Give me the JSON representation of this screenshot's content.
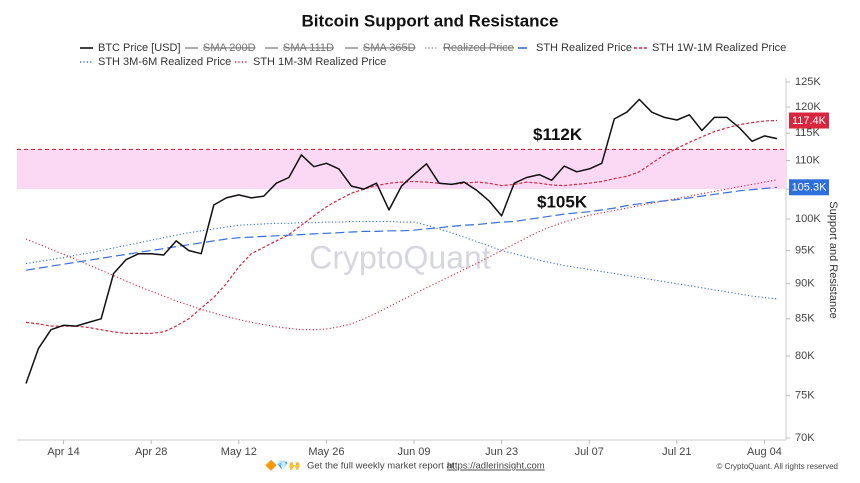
{
  "chart_data": {
    "type": "line",
    "title": "Bitcoin Support and Resistance",
    "y_axis_label": "Support and Resistance",
    "watermark": "CryptoQuant",
    "log_scale": true,
    "grid": false,
    "categories": [
      null,
      null,
      null,
      "Apr 14",
      null,
      null,
      null,
      null,
      null,
      null,
      "Apr 28",
      null,
      null,
      null,
      null,
      null,
      null,
      "May 12",
      null,
      null,
      null,
      null,
      null,
      null,
      "May 26",
      null,
      null,
      null,
      null,
      null,
      null,
      "Jun 09",
      null,
      null,
      null,
      null,
      null,
      null,
      "Jun 23",
      null,
      null,
      null,
      null,
      null,
      null,
      "Jul 07",
      null,
      null,
      null,
      null,
      null,
      null,
      "Jul 21",
      null,
      null,
      null,
      null,
      null,
      null,
      "Aug 04",
      null
    ],
    "ylim": [
      70000,
      125000
    ],
    "yticks": [
      {
        "value": 70000,
        "label": "70K"
      },
      {
        "value": 75000,
        "label": "75K"
      },
      {
        "value": 80000,
        "label": "80K"
      },
      {
        "value": 85000,
        "label": "85K"
      },
      {
        "value": 90000,
        "label": "90K"
      },
      {
        "value": 95000,
        "label": "95K"
      },
      {
        "value": 100000,
        "label": "100K"
      },
      {
        "value": 105000,
        "label": "105K"
      },
      {
        "value": 110000,
        "label": "110K"
      },
      {
        "value": 115000,
        "label": "115K"
      },
      {
        "value": 120000,
        "label": "120K"
      },
      {
        "value": 125000,
        "label": "125K"
      }
    ],
    "series": [
      {
        "name": "BTC Price [USD]",
        "color": "#111111",
        "line_style": "solid",
        "visible": true,
        "values": [
          76500,
          81000,
          83500,
          84100,
          84000,
          84500,
          85000,
          91500,
          93600,
          94500,
          94500,
          94300,
          96500,
          95000,
          94500,
          102300,
          103500,
          104000,
          103500,
          103800,
          106000,
          107000,
          111000,
          108900,
          109500,
          108500,
          105500,
          105000,
          106000,
          101500,
          105500,
          107500,
          109400,
          106000,
          105800,
          106200,
          104800,
          103000,
          100500,
          106000,
          107000,
          107500,
          106500,
          109000,
          108000,
          108500,
          109500,
          117700,
          119000,
          121500,
          119000,
          118000,
          117500,
          118500,
          115500,
          118000,
          118000,
          116000,
          113500,
          114500,
          114000
        ]
      },
      {
        "name": "SMA 200D",
        "color": "#888888",
        "line_style": "solid",
        "visible": false
      },
      {
        "name": "SMA 111D",
        "color": "#888888",
        "line_style": "solid",
        "visible": false
      },
      {
        "name": "SMA 365D",
        "color": "#888888",
        "line_style": "solid",
        "visible": false
      },
      {
        "name": "Realized Price",
        "color": "#888888",
        "line_style": "dotted",
        "visible": false
      },
      {
        "name": "STH Realized Price",
        "color": "#3a6fd8",
        "line_style": "dashed",
        "visible": true,
        "values": [
          92000,
          92300,
          92600,
          92900,
          93200,
          93500,
          93800,
          94100,
          94400,
          94700,
          95000,
          95300,
          95600,
          95900,
          96200,
          96500,
          96800,
          97000,
          97100,
          97200,
          97300,
          97400,
          97500,
          97600,
          97700,
          97800,
          97900,
          98000,
          98000,
          98100,
          98100,
          98200,
          98400,
          98600,
          98800,
          99000,
          99100,
          99300,
          99500,
          99600,
          99900,
          100200,
          100500,
          100800,
          101000,
          101200,
          101500,
          101800,
          102200,
          102500,
          102800,
          103000,
          103200,
          103500,
          103800,
          104100,
          104400,
          104700,
          104900,
          105100,
          105300
        ]
      },
      {
        "name": "STH 1W-1M Realized Price",
        "color": "#d7263d",
        "line_style": "dashed-fine",
        "visible": true,
        "values": [
          84500,
          84300,
          84000,
          84000,
          84000,
          83800,
          83500,
          83200,
          83000,
          83000,
          83000,
          83200,
          84000,
          85000,
          86500,
          88000,
          90000,
          92500,
          94500,
          95500,
          96500,
          97500,
          99000,
          100500,
          102000,
          103200,
          104300,
          105000,
          105600,
          106000,
          106200,
          106300,
          106200,
          106000,
          105800,
          106000,
          106200,
          106000,
          105600,
          105800,
          106200,
          106000,
          105700,
          105600,
          105800,
          106000,
          106300,
          106800,
          107200,
          108000,
          109500,
          111000,
          112200,
          113300,
          114300,
          115300,
          116000,
          116600,
          117000,
          117300,
          117400
        ]
      },
      {
        "name": "STH 3M-6M Realized Price",
        "color": "#3a6fd8",
        "line_style": "dotted",
        "visible": true,
        "values": [
          93000,
          93300,
          93600,
          93900,
          94300,
          94600,
          95000,
          95400,
          95800,
          96200,
          96600,
          97000,
          97400,
          97800,
          98100,
          98400,
          98700,
          99000,
          99100,
          99200,
          99300,
          99300,
          99400,
          99400,
          99500,
          99500,
          99600,
          99600,
          99600,
          99600,
          99500,
          99500,
          99000,
          98400,
          97800,
          97100,
          96400,
          95700,
          95000,
          94500,
          94000,
          93500,
          93100,
          92700,
          92400,
          92100,
          91800,
          91500,
          91200,
          90900,
          90600,
          90300,
          90000,
          89700,
          89400,
          89100,
          88800,
          88500,
          88200,
          88000,
          87800
        ]
      },
      {
        "name": "STH 1M-3M Realized Price",
        "color": "#d7263d",
        "line_style": "dotted",
        "visible": true,
        "values": [
          96800,
          96000,
          95200,
          94400,
          93600,
          92800,
          92000,
          91200,
          90400,
          89600,
          88900,
          88200,
          87500,
          86900,
          86300,
          85800,
          85300,
          84900,
          84500,
          84200,
          83900,
          83700,
          83500,
          83500,
          83600,
          83900,
          84300,
          85000,
          85800,
          86700,
          87600,
          88500,
          89400,
          90300,
          91200,
          92100,
          93000,
          94000,
          95000,
          96000,
          97000,
          98000,
          98800,
          99500,
          100100,
          100600,
          101000,
          101400,
          101800,
          102200,
          102600,
          103000,
          103400,
          103800,
          104200,
          104600,
          105000,
          105400,
          105800,
          106200,
          106600
        ]
      }
    ],
    "zone": {
      "low": 105000,
      "high": 112000,
      "color": "#fbd9f5",
      "line_color": "#d7263d"
    },
    "annotations": [
      {
        "text": "$112K",
        "value": 112000
      },
      {
        "text": "$105K",
        "value": 105000
      }
    ],
    "end_labels": [
      {
        "value": 117400,
        "label": "117.4K",
        "color": "#d7263d"
      },
      {
        "value": 105300,
        "label": "105.3K",
        "color": "#2f6fdc"
      }
    ],
    "footer": {
      "text": "Get the full weekly market report at",
      "link": "https://adlerinsight.com",
      "copyright": "© CryptoQuant. All rights reserved"
    }
  }
}
